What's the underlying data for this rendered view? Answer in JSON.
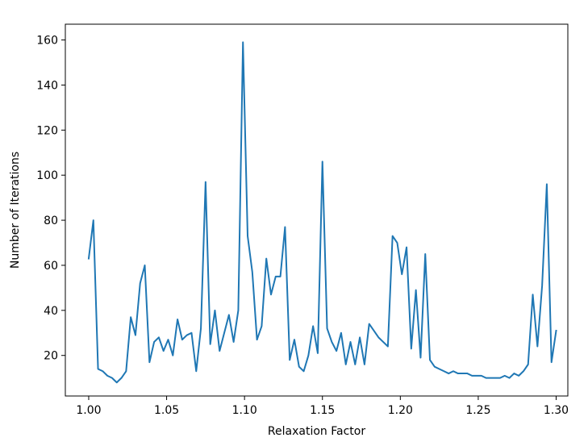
{
  "chart_data": {
    "type": "line",
    "title": "",
    "xlabel": "Relaxation Factor",
    "ylabel": "Number of Iterations",
    "xlim": [
      0.985,
      1.3075
    ],
    "ylim": [
      2,
      167
    ],
    "xticks": [
      1.0,
      1.05,
      1.1,
      1.15,
      1.2,
      1.25,
      1.3
    ],
    "xtick_labels": [
      "1.00",
      "1.05",
      "1.10",
      "1.15",
      "1.20",
      "1.25",
      "1.30"
    ],
    "yticks": [
      20,
      40,
      60,
      80,
      100,
      120,
      140,
      160
    ],
    "ytick_labels": [
      "20",
      "40",
      "60",
      "80",
      "100",
      "120",
      "140",
      "160"
    ],
    "grid": false,
    "series": [
      {
        "color": "#1f77b4",
        "x": [
          1.0,
          1.003,
          1.006,
          1.009,
          1.012,
          1.015,
          1.018,
          1.021,
          1.024,
          1.027,
          1.03,
          1.033,
          1.036,
          1.039,
          1.042,
          1.045,
          1.048,
          1.051,
          1.054,
          1.057,
          1.06,
          1.063,
          1.066,
          1.069,
          1.072,
          1.075,
          1.078,
          1.081,
          1.084,
          1.087,
          1.09,
          1.093,
          1.096,
          1.099,
          1.102,
          1.105,
          1.108,
          1.111,
          1.114,
          1.117,
          1.12,
          1.123,
          1.126,
          1.129,
          1.132,
          1.135,
          1.138,
          1.141,
          1.144,
          1.147,
          1.15,
          1.153,
          1.156,
          1.159,
          1.162,
          1.165,
          1.168,
          1.171,
          1.174,
          1.177,
          1.18,
          1.183,
          1.186,
          1.189,
          1.192,
          1.195,
          1.198,
          1.201,
          1.204,
          1.207,
          1.21,
          1.213,
          1.216,
          1.219,
          1.222,
          1.225,
          1.228,
          1.231,
          1.234,
          1.237,
          1.24,
          1.243,
          1.246,
          1.249,
          1.252,
          1.255,
          1.258,
          1.261,
          1.264,
          1.267,
          1.27,
          1.273,
          1.276,
          1.279,
          1.282,
          1.285,
          1.288,
          1.291,
          1.294,
          1.297,
          1.3
        ],
        "y": [
          63,
          80,
          14,
          13,
          11,
          10,
          8,
          10,
          13,
          37,
          29,
          52,
          60,
          17,
          26,
          28,
          22,
          27,
          20,
          36,
          27,
          29,
          30,
          13,
          32,
          97,
          25,
          40,
          22,
          30,
          38,
          26,
          40,
          159,
          73,
          57,
          27,
          33,
          63,
          47,
          55,
          55,
          77,
          18,
          27,
          15,
          13,
          20,
          33,
          21,
          106,
          32,
          26,
          22,
          30,
          16,
          26,
          16,
          28,
          16,
          34,
          31,
          28,
          26,
          24,
          73,
          70,
          56,
          68,
          23,
          49,
          19,
          65,
          18,
          15,
          14,
          13,
          12,
          13,
          12,
          12,
          12,
          11,
          11,
          11,
          10,
          10,
          10,
          10,
          11,
          10,
          12,
          11,
          13,
          16,
          47,
          24,
          51,
          96,
          17,
          31
        ]
      }
    ]
  }
}
